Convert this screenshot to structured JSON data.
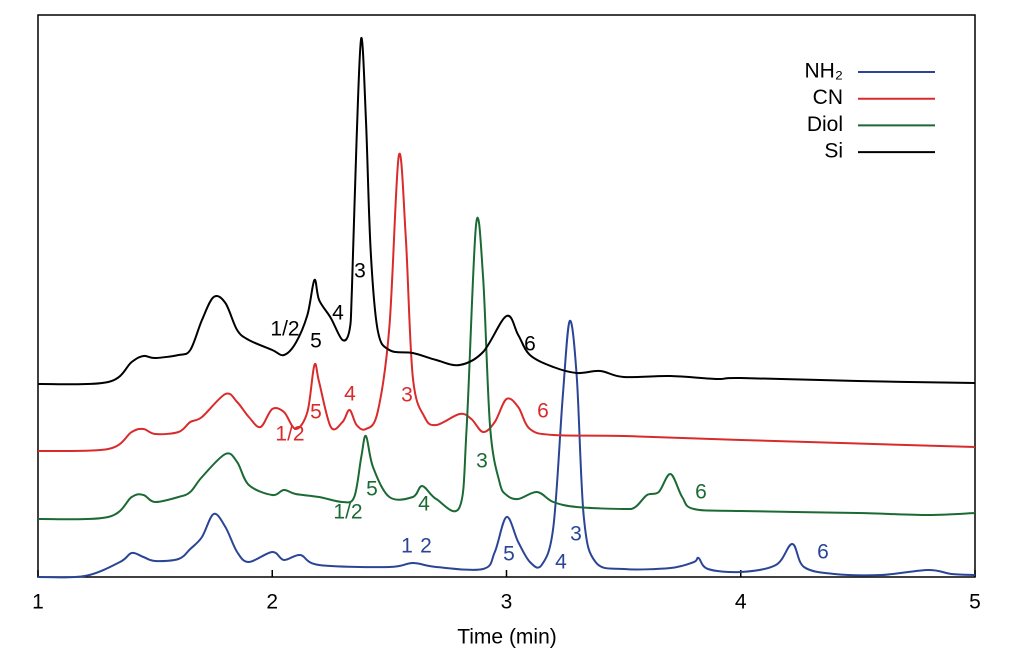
{
  "chart_data": {
    "type": "line",
    "x_label": "Time (min)",
    "xlim": [
      1,
      5
    ],
    "xticks": [
      1,
      2,
      3,
      4,
      5
    ],
    "ylim": [
      0,
      562
    ],
    "legend": "upper right",
    "series": [
      {
        "name": "NH₂",
        "color": "#2b4596",
        "x": [
          1.0,
          1.2,
          1.35,
          1.4,
          1.45,
          1.5,
          1.6,
          1.65,
          1.7,
          1.75,
          1.8,
          1.85,
          1.9,
          2.0,
          2.05,
          2.12,
          2.2,
          2.5,
          2.6,
          2.7,
          2.9,
          2.95,
          3.0,
          3.05,
          3.1,
          3.15,
          3.2,
          3.24,
          3.27,
          3.3,
          3.33,
          3.38,
          3.5,
          3.7,
          3.8,
          3.82,
          3.86,
          4.0,
          4.15,
          4.22,
          4.27,
          4.4,
          4.6,
          4.8,
          4.9,
          5.0
        ],
        "values": [
          0,
          1,
          15,
          24,
          20,
          16,
          18,
          28,
          40,
          63,
          50,
          25,
          15,
          25,
          17,
          22,
          12,
          10,
          14,
          10,
          8,
          25,
          60,
          35,
          15,
          12,
          50,
          180,
          256,
          200,
          60,
          15,
          8,
          9,
          15,
          19,
          8,
          5,
          12,
          33,
          10,
          3,
          2,
          7,
          3,
          2
        ],
        "peak_labels": [
          "1",
          "2",
          "5",
          "4",
          "3",
          "6"
        ]
      },
      {
        "name": "CN",
        "color": "#d92b2b",
        "x": [
          1.0,
          1.3,
          1.4,
          1.45,
          1.5,
          1.6,
          1.65,
          1.7,
          1.8,
          1.85,
          1.9,
          1.95,
          2.0,
          2.05,
          2.1,
          2.15,
          2.18,
          2.2,
          2.25,
          2.3,
          2.33,
          2.36,
          2.4,
          2.45,
          2.5,
          2.54,
          2.57,
          2.6,
          2.65,
          2.7,
          2.8,
          2.85,
          2.9,
          2.95,
          3.0,
          3.05,
          3.1,
          3.2,
          3.5,
          4.0,
          5.0
        ],
        "values": [
          126,
          128,
          145,
          148,
          143,
          145,
          155,
          160,
          183,
          175,
          160,
          150,
          168,
          165,
          148,
          165,
          212,
          195,
          150,
          155,
          167,
          152,
          148,
          165,
          250,
          421,
          340,
          200,
          160,
          152,
          163,
          158,
          145,
          155,
          178,
          170,
          148,
          142,
          141,
          137,
          130
        ],
        "peak_labels": [
          "1/2",
          "5",
          "4",
          "3",
          "6"
        ]
      },
      {
        "name": "Diol",
        "color": "#1b6a34",
        "x": [
          1.0,
          1.3,
          1.4,
          1.45,
          1.5,
          1.6,
          1.65,
          1.7,
          1.8,
          1.85,
          1.9,
          2.0,
          2.05,
          2.1,
          2.2,
          2.3,
          2.35,
          2.38,
          2.4,
          2.43,
          2.5,
          2.6,
          2.64,
          2.7,
          2.8,
          2.83,
          2.87,
          2.9,
          2.93,
          2.97,
          3.0,
          3.05,
          3.13,
          3.2,
          3.3,
          3.5,
          3.55,
          3.6,
          3.65,
          3.7,
          3.75,
          3.8,
          4.0,
          4.5,
          4.8,
          5.0
        ],
        "values": [
          58,
          60,
          80,
          82,
          75,
          80,
          85,
          100,
          123,
          115,
          92,
          82,
          87,
          83,
          80,
          75,
          80,
          120,
          141,
          110,
          80,
          80,
          91,
          78,
          70,
          150,
          352,
          300,
          150,
          95,
          82,
          78,
          85,
          75,
          70,
          68,
          70,
          82,
          85,
          103,
          80,
          68,
          66,
          64,
          62,
          64
        ],
        "peak_labels": [
          "1/2",
          "5",
          "4",
          "3",
          "6"
        ]
      },
      {
        "name": "Si",
        "color": "#000000",
        "x": [
          1.0,
          1.3,
          1.4,
          1.45,
          1.5,
          1.6,
          1.65,
          1.7,
          1.75,
          1.8,
          1.85,
          1.9,
          2.0,
          2.05,
          2.1,
          2.15,
          2.18,
          2.2,
          2.25,
          2.3,
          2.33,
          2.34,
          2.36,
          2.38,
          2.4,
          2.42,
          2.45,
          2.5,
          2.6,
          2.7,
          2.8,
          2.9,
          3.0,
          3.05,
          3.1,
          3.2,
          3.3,
          3.4,
          3.5,
          3.7,
          3.9,
          4.0,
          4.5,
          5.0
        ],
        "values": [
          193,
          195,
          215,
          221,
          219,
          222,
          227,
          257,
          280,
          274,
          247,
          237,
          227,
          222,
          234,
          262,
          297,
          277,
          259,
          237,
          247,
          287,
          437,
          539,
          457,
          327,
          247,
          227,
          224,
          217,
          212,
          225,
          261,
          242,
          222,
          210,
          204,
          206,
          200,
          201,
          198,
          199,
          196,
          194
        ],
        "peak_labels": [
          "1/2",
          "5",
          "4",
          "3",
          "6"
        ]
      }
    ]
  }
}
